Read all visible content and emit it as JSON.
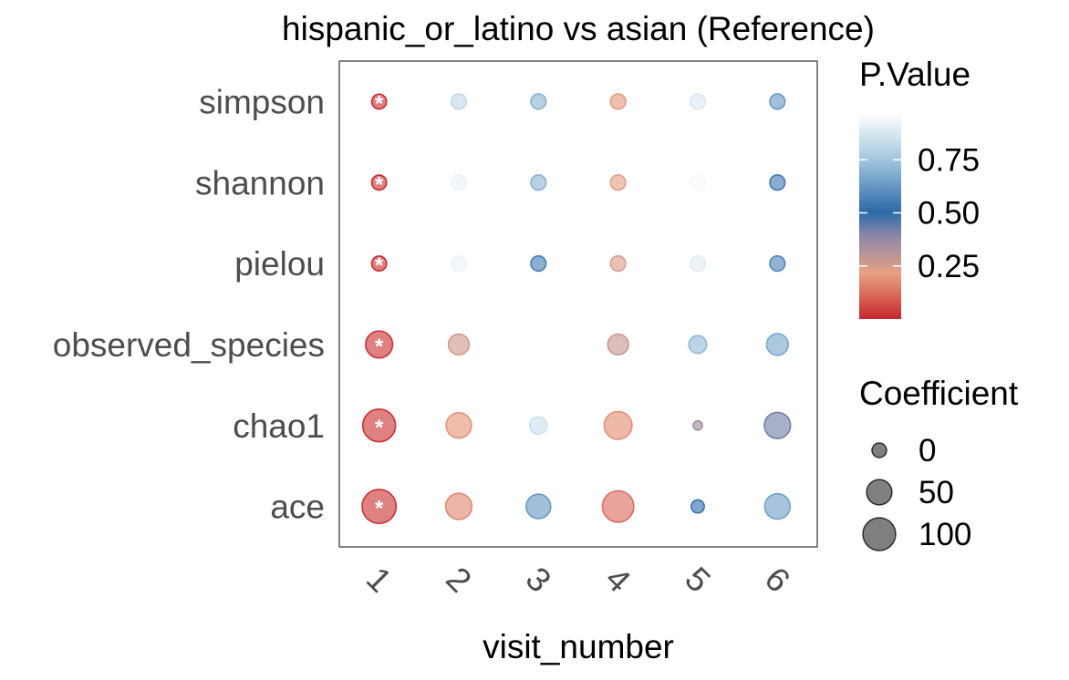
{
  "chart_data": {
    "type": "scatter",
    "title": "hispanic_or_latino vs asian (Reference)",
    "xlabel": "visit_number",
    "ylabel": "",
    "x_categories": [
      "1",
      "2",
      "3",
      "4",
      "5",
      "6"
    ],
    "y_categories": [
      "simpson",
      "shannon",
      "pielou",
      "observed_species",
      "chao1",
      "ace"
    ],
    "color_legend": {
      "title": "P.Value",
      "ticks": [
        0.75,
        0.5,
        0.25
      ],
      "tick_labels": [
        "0.75",
        "0.50",
        "0.25"
      ],
      "range": [
        0.0,
        0.97
      ],
      "low_color": "#c8262c",
      "mid_low_color": "#e8a183",
      "mid_color": "#2c6aa9",
      "high_color": "#ffffff"
    },
    "size_legend": {
      "title": "Coefficient",
      "values": [
        0,
        50,
        100
      ],
      "labels": [
        "0",
        "50",
        "100"
      ]
    },
    "significance_marker": "*",
    "points": [
      {
        "x": "1",
        "y": "simpson",
        "p_value": 0.01,
        "coefficient": 1,
        "significant": true
      },
      {
        "x": "2",
        "y": "simpson",
        "p_value": 0.82,
        "coefficient": 2,
        "significant": false
      },
      {
        "x": "3",
        "y": "simpson",
        "p_value": 0.7,
        "coefficient": 2,
        "significant": false
      },
      {
        "x": "4",
        "y": "simpson",
        "p_value": 0.2,
        "coefficient": 2,
        "significant": false
      },
      {
        "x": "5",
        "y": "simpson",
        "p_value": 0.88,
        "coefficient": 2,
        "significant": false
      },
      {
        "x": "6",
        "y": "simpson",
        "p_value": 0.63,
        "coefficient": 2,
        "significant": false
      },
      {
        "x": "1",
        "y": "shannon",
        "p_value": 0.01,
        "coefficient": 1,
        "significant": true
      },
      {
        "x": "2",
        "y": "shannon",
        "p_value": 0.92,
        "coefficient": 1,
        "significant": false
      },
      {
        "x": "3",
        "y": "shannon",
        "p_value": 0.7,
        "coefficient": 2,
        "significant": false
      },
      {
        "x": "4",
        "y": "shannon",
        "p_value": 0.22,
        "coefficient": 2,
        "significant": false
      },
      {
        "x": "5",
        "y": "shannon",
        "p_value": 0.95,
        "coefficient": 1,
        "significant": false
      },
      {
        "x": "6",
        "y": "shannon",
        "p_value": 0.55,
        "coefficient": 2,
        "significant": false
      },
      {
        "x": "1",
        "y": "pielou",
        "p_value": 0.01,
        "coefficient": 1,
        "significant": true
      },
      {
        "x": "2",
        "y": "pielou",
        "p_value": 0.92,
        "coefficient": 1,
        "significant": false
      },
      {
        "x": "3",
        "y": "pielou",
        "p_value": 0.56,
        "coefficient": 2,
        "significant": false
      },
      {
        "x": "4",
        "y": "pielou",
        "p_value": 0.24,
        "coefficient": 2,
        "significant": false
      },
      {
        "x": "5",
        "y": "pielou",
        "p_value": 0.9,
        "coefficient": 2,
        "significant": false
      },
      {
        "x": "6",
        "y": "pielou",
        "p_value": 0.58,
        "coefficient": 2,
        "significant": false
      },
      {
        "x": "1",
        "y": "observed_species",
        "p_value": 0.02,
        "coefficient": 60,
        "significant": true
      },
      {
        "x": "2",
        "y": "observed_species",
        "p_value": 0.26,
        "coefficient": 25,
        "significant": false
      },
      {
        "x": "4",
        "y": "observed_species",
        "p_value": 0.28,
        "coefficient": 25,
        "significant": false
      },
      {
        "x": "5",
        "y": "observed_species",
        "p_value": 0.72,
        "coefficient": 12,
        "significant": false
      },
      {
        "x": "6",
        "y": "observed_species",
        "p_value": 0.67,
        "coefficient": 30,
        "significant": false
      },
      {
        "x": "1",
        "y": "chao1",
        "p_value": 0.02,
        "coefficient": 100,
        "significant": true
      },
      {
        "x": "2",
        "y": "chao1",
        "p_value": 0.19,
        "coefficient": 50,
        "significant": false
      },
      {
        "x": "3",
        "y": "chao1",
        "p_value": 0.85,
        "coefficient": 10,
        "significant": false
      },
      {
        "x": "4",
        "y": "chao1",
        "p_value": 0.18,
        "coefficient": 65,
        "significant": false
      },
      {
        "x": "5",
        "y": "chao1",
        "p_value": 0.35,
        "coefficient": -15,
        "significant": false
      },
      {
        "x": "6",
        "y": "chao1",
        "p_value": 0.42,
        "coefficient": 55,
        "significant": false
      },
      {
        "x": "1",
        "y": "ace",
        "p_value": 0.02,
        "coefficient": 110,
        "significant": true
      },
      {
        "x": "2",
        "y": "ace",
        "p_value": 0.17,
        "coefficient": 55,
        "significant": false
      },
      {
        "x": "3",
        "y": "ace",
        "p_value": 0.63,
        "coefficient": 45,
        "significant": false
      },
      {
        "x": "4",
        "y": "ace",
        "p_value": 0.12,
        "coefficient": 90,
        "significant": false
      },
      {
        "x": "5",
        "y": "ace",
        "p_value": 0.52,
        "coefficient": -5,
        "significant": false
      },
      {
        "x": "6",
        "y": "ace",
        "p_value": 0.65,
        "coefficient": 50,
        "significant": false
      }
    ]
  }
}
